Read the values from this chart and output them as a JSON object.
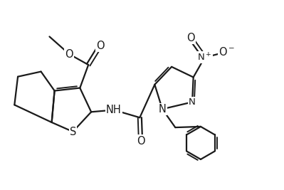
{
  "background_color": "#ffffff",
  "line_color": "#1a1a1a",
  "line_width": 1.6,
  "figsize": [
    3.99,
    2.67
  ],
  "dpi": 100,
  "xlim": [
    0,
    10
  ],
  "ylim": [
    0,
    6.7
  ],
  "font_size": 10.5
}
